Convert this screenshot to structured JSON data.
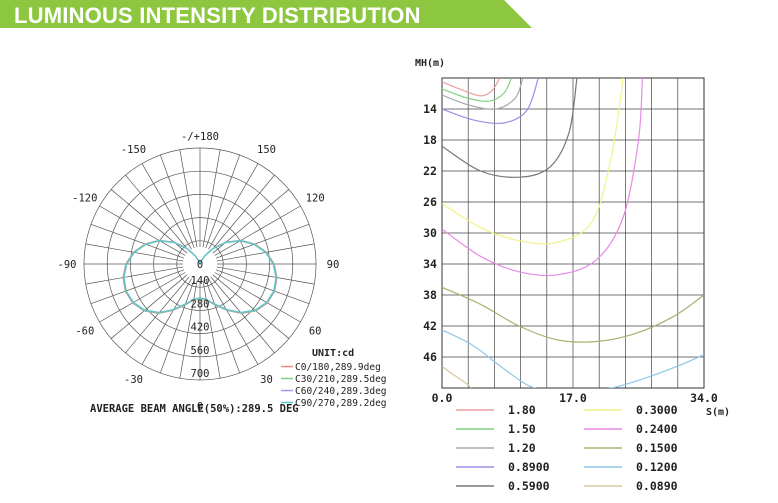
{
  "banner": {
    "title": "LUMINOUS INTENSITY DISTRIBUTION",
    "color": "#8dc63f"
  },
  "chart_data": [
    {
      "type": "polar",
      "angle_labels": [
        {
          "label": "-/+180",
          "deg": 180
        },
        {
          "label": "-150",
          "deg": -150
        },
        {
          "label": "150",
          "deg": 150
        },
        {
          "label": "-120",
          "deg": -120
        },
        {
          "label": "120",
          "deg": 120
        },
        {
          "label": "-90",
          "deg": -90
        },
        {
          "label": "90",
          "deg": 90
        },
        {
          "label": "-60",
          "deg": -60
        },
        {
          "label": "60",
          "deg": 60
        },
        {
          "label": "-30",
          "deg": -30
        },
        {
          "label": "30",
          "deg": 30
        },
        {
          "label": "0",
          "deg": 0
        }
      ],
      "radial_labels": [
        {
          "label": "0",
          "value": 0
        },
        {
          "label": "140",
          "value": 140
        },
        {
          "label": "280",
          "value": 280
        },
        {
          "label": "420",
          "value": 420
        },
        {
          "label": "560",
          "value": 560
        },
        {
          "label": "700",
          "value": 700
        }
      ],
      "r_max": 700,
      "unit_label": "UNIT:cd",
      "series": [
        {
          "name": "C0/180,289.9deg",
          "color": "#e88a8a",
          "angles": [
            0,
            10,
            20,
            30,
            40,
            50,
            60,
            70,
            80,
            90,
            100,
            110,
            120,
            130,
            140,
            150,
            160,
            170,
            180
          ],
          "values": [
            210,
            222,
            262,
            322,
            388,
            440,
            470,
            480,
            472,
            448,
            408,
            352,
            285,
            205,
            125,
            60,
            18,
            0,
            0
          ]
        },
        {
          "name": "C30/210,289.5deg",
          "color": "#7ed37e",
          "angles": [
            0,
            10,
            20,
            30,
            40,
            50,
            60,
            70,
            80,
            90,
            100,
            110,
            120,
            130,
            140,
            150,
            160,
            170,
            180
          ],
          "values": [
            208,
            220,
            260,
            320,
            386,
            438,
            468,
            478,
            470,
            446,
            406,
            350,
            284,
            204,
            124,
            60,
            18,
            0,
            0
          ]
        },
        {
          "name": "C60/240,289.3deg",
          "color": "#9b9be8",
          "angles": [
            0,
            10,
            20,
            30,
            40,
            50,
            60,
            70,
            80,
            90,
            100,
            110,
            120,
            130,
            140,
            150,
            160,
            170,
            180
          ],
          "values": [
            206,
            218,
            258,
            318,
            384,
            436,
            466,
            476,
            468,
            444,
            404,
            348,
            282,
            202,
            122,
            58,
            17,
            0,
            0
          ]
        },
        {
          "name": "C90/270,289.2deg",
          "color": "#5ec8c8",
          "angles": [
            0,
            10,
            20,
            30,
            40,
            50,
            60,
            70,
            80,
            90,
            100,
            110,
            120,
            130,
            140,
            150,
            160,
            170,
            180
          ],
          "values": [
            204,
            216,
            256,
            316,
            382,
            434,
            464,
            474,
            466,
            442,
            402,
            346,
            280,
            200,
            120,
            56,
            16,
            0,
            0
          ]
        }
      ],
      "footer": "AVERAGE BEAM ANGLE(50%):289.5 DEG"
    },
    {
      "type": "isolux",
      "y_axis_label": "MH(m)",
      "x_axis_label": "S(m)",
      "y_ticks": [
        "14",
        "18",
        "22",
        "26",
        "30",
        "34",
        "38",
        "42",
        "46"
      ],
      "x_ticks": [
        "0.0",
        "17.0",
        "34.0"
      ],
      "x_range": [
        0,
        34
      ],
      "y_range": [
        10,
        50
      ],
      "series": [
        {
          "name": "1.80",
          "color": "#e8a0a0",
          "x": [
            0.0,
            2.5,
            5.0,
            6.5,
            7.5
          ],
          "y": [
            10.5,
            11.5,
            12.3,
            11.6,
            10.0
          ]
        },
        {
          "name": "1.50",
          "color": "#7ed37e",
          "x": [
            0.0,
            3.0,
            6.0,
            8.0,
            9.0
          ],
          "y": [
            11.4,
            12.5,
            13.0,
            12.0,
            10.0
          ]
        },
        {
          "name": "1.20",
          "color": "#a8a8a8",
          "x": [
            0.0,
            3.5,
            7.0,
            9.5,
            10.5
          ],
          "y": [
            12.2,
            13.5,
            14.0,
            12.6,
            10.0
          ]
        },
        {
          "name": "0.8900",
          "color": "#a08ce6",
          "x": [
            0.0,
            4.0,
            8.0,
            11.0,
            12.5
          ],
          "y": [
            14.0,
            15.4,
            15.8,
            14.2,
            10.0
          ]
        },
        {
          "name": "0.5900",
          "color": "#777777",
          "x": [
            0.0,
            5.0,
            10.0,
            14.0,
            16.5,
            17.5
          ],
          "y": [
            18.8,
            22.0,
            22.8,
            21.5,
            17.0,
            10.0
          ]
        },
        {
          "name": "0.3000",
          "color": "#f2f28a",
          "x": [
            0.0,
            5.0,
            10.0,
            15.0,
            19.5,
            22.0,
            23.5
          ],
          "y": [
            26.2,
            29.3,
            31.0,
            31.2,
            28.5,
            20.0,
            10.0
          ]
        },
        {
          "name": "0.2400",
          "color": "#e88ae8",
          "x": [
            0.0,
            5.0,
            10.0,
            15.0,
            20.0,
            23.5,
            25.5,
            26.0
          ],
          "y": [
            29.5,
            33.0,
            35.0,
            35.4,
            33.5,
            28.0,
            18.0,
            10.0
          ]
        },
        {
          "name": "0.1500",
          "color": "#aab070",
          "x": [
            0.0,
            5.0,
            10.0,
            15.0,
            20.0,
            25.0,
            30.0,
            34.0
          ],
          "y": [
            37.0,
            39.2,
            42.0,
            43.8,
            44.0,
            43.0,
            40.8,
            38.0
          ]
        },
        {
          "name": "0.1200",
          "color": "#8ec8e8",
          "x": [
            0.0,
            4.0,
            8.0,
            12.0,
            17.0,
            22.0,
            27.0,
            31.0,
            34.0
          ],
          "y": [
            42.5,
            44.5,
            47.5,
            50.0,
            50.4,
            50.0,
            48.5,
            47.0,
            45.7
          ]
        },
        {
          "name": "0.0890",
          "color": "#d8c8a0",
          "x": [
            0.0,
            1.5,
            3.0,
            3.8
          ],
          "y": [
            47.2,
            48.3,
            49.3,
            50.0
          ]
        }
      ]
    }
  ]
}
